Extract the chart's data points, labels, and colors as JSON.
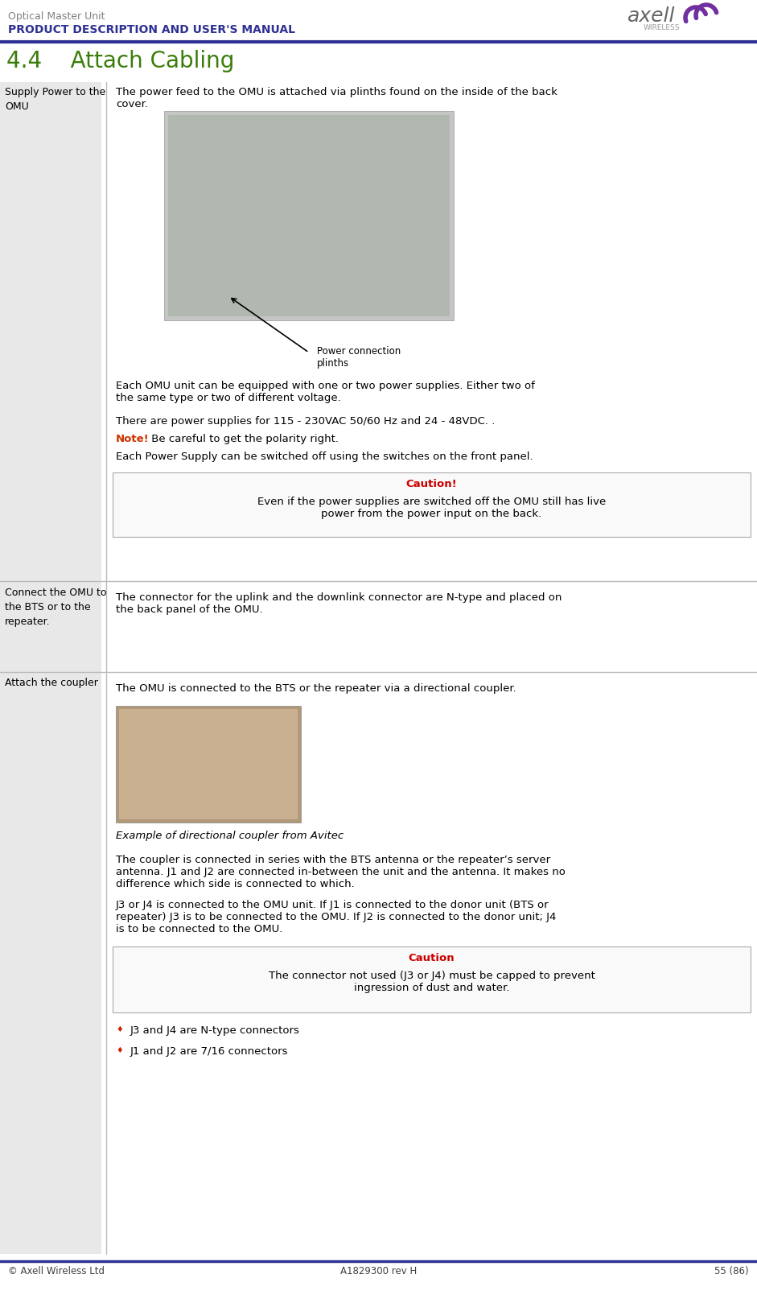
{
  "page_width": 9.41,
  "page_height": 16.14,
  "dpi": 100,
  "bg_color": "#ffffff",
  "header_top_text": "Optical Master Unit",
  "header_bold_text": "PRODUCT DESCRIPTION AND USER'S MANUAL",
  "header_line_color": "#2e3194",
  "header_text_color": "#808080",
  "header_bold_color": "#2e3194",
  "section_title": "4.4    Attach Cabling",
  "section_title_color": "#3a7d0a",
  "left_col_bg": "#e8e8e8",
  "divider_color": "#bbbbbb",
  "footer_line_color": "#2e3194",
  "footer_left": "© Axell Wireless Ltd",
  "footer_center": "A1829300 rev H",
  "footer_right": "55 (86)",
  "footer_color": "#404040",
  "caution_red": "#cc0000",
  "note_green": "#cc3300",
  "bullet_red": "#cc2200"
}
